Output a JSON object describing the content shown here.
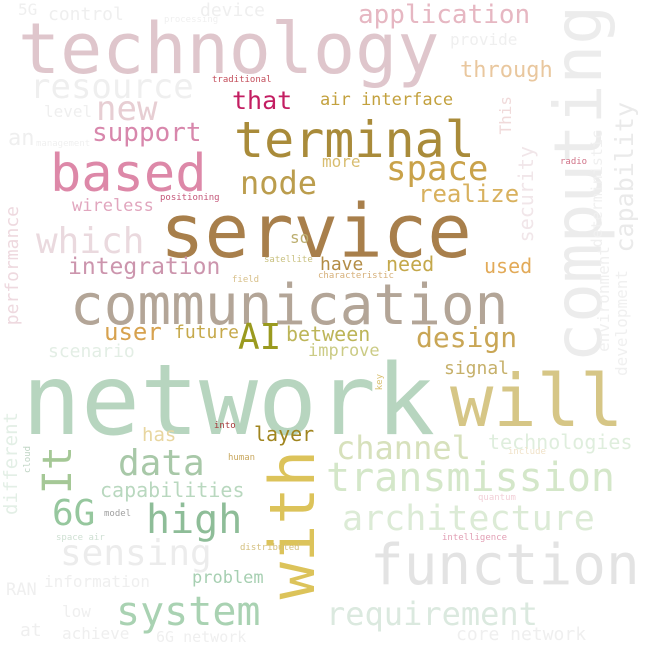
{
  "words": [
    {
      "text": "network",
      "color": "#b7d5bf"
    },
    {
      "text": "service",
      "color": "#a87f4b"
    },
    {
      "text": "technology",
      "color": "#dfc6cc"
    },
    {
      "text": "communication",
      "color": "#b3a597"
    },
    {
      "text": "computing",
      "color": "#ececec"
    },
    {
      "text": "will",
      "color": "#d6c686"
    },
    {
      "text": "with",
      "color": "#dcc35a"
    },
    {
      "text": "function",
      "color": "#e3e3e3"
    },
    {
      "text": "terminal",
      "color": "#a98b3a"
    },
    {
      "text": "based",
      "color": "#dd88a8"
    },
    {
      "text": "transmission",
      "color": "#d4e7c9"
    },
    {
      "text": "architecture",
      "color": "#dcebd6"
    },
    {
      "text": "system",
      "color": "#a9d2b2"
    },
    {
      "text": "requirement",
      "color": "#dbe9df"
    },
    {
      "text": "resource",
      "color": "#efefef"
    },
    {
      "text": "application",
      "color": "#e6b7c2"
    },
    {
      "text": "sensing",
      "color": "#ececec"
    },
    {
      "text": "high",
      "color": "#8ebd98"
    },
    {
      "text": "data",
      "color": "#a8c8a8"
    },
    {
      "text": "channel",
      "color": "#d7e1bc"
    },
    {
      "text": "which",
      "color": "#ead9de"
    },
    {
      "text": "space",
      "color": "#c9a24a"
    },
    {
      "text": "node",
      "color": "#bb9d4d"
    },
    {
      "text": "new",
      "color": "#e7ced3"
    },
    {
      "text": "It",
      "color": "#a5c896"
    },
    {
      "text": "6G",
      "color": "#96c79e"
    },
    {
      "text": "AI",
      "color": "#9a9a1f"
    },
    {
      "text": "design",
      "color": "#c9a655"
    },
    {
      "text": "support",
      "color": "#d887ac"
    },
    {
      "text": "integration",
      "color": "#cc95ad"
    },
    {
      "text": "capability",
      "color": "#eaeaea"
    },
    {
      "text": "technologies",
      "color": "#dfeedd"
    },
    {
      "text": "capabilities",
      "color": "#b9d8bf"
    },
    {
      "text": "user",
      "color": "#d7a24f"
    },
    {
      "text": "that",
      "color": "#c31e62"
    },
    {
      "text": "through",
      "color": "#e9c79e"
    },
    {
      "text": "realize",
      "color": "#d8b15e"
    },
    {
      "text": "security",
      "color": "#f1e6e9"
    },
    {
      "text": "need",
      "color": "#c4a84b"
    },
    {
      "text": "used",
      "color": "#e2aa58"
    },
    {
      "text": "layer",
      "color": "#a0851f"
    },
    {
      "text": "future",
      "color": "#c6a94b"
    },
    {
      "text": "between",
      "color": "#bdb559"
    },
    {
      "text": "improve",
      "color": "#cbcb85"
    },
    {
      "text": "scenario",
      "color": "#e3eee5"
    },
    {
      "text": "signal",
      "color": "#c6b06a"
    },
    {
      "text": "has",
      "color": "#e8d6a0"
    },
    {
      "text": "problem",
      "color": "#a6cfb1"
    },
    {
      "text": "have",
      "color": "#b38c45"
    },
    {
      "text": "more",
      "color": "#d8bd70"
    },
    {
      "text": "so",
      "color": "#bcae6f"
    },
    {
      "text": "air interface",
      "color": "#c3a13e"
    },
    {
      "text": "wireless",
      "color": "#e1a6be"
    },
    {
      "text": "performance",
      "color": "#eed9df"
    },
    {
      "text": "different",
      "color": "#e3efe6"
    },
    {
      "text": "environment",
      "color": "#f0f0f0"
    },
    {
      "text": "development",
      "color": "#f0f0f0"
    },
    {
      "text": "deterministic",
      "color": "#f0f0f0"
    },
    {
      "text": "This",
      "color": "#f0dada"
    },
    {
      "text": "provide",
      "color": "#efefef"
    },
    {
      "text": "level",
      "color": "#efefef"
    },
    {
      "text": "an",
      "color": "#efefef"
    },
    {
      "text": "5G",
      "color": "#efefef"
    },
    {
      "text": "control",
      "color": "#efefef"
    },
    {
      "text": "device",
      "color": "#efefef"
    },
    {
      "text": "information",
      "color": "#efefef"
    },
    {
      "text": "RAN",
      "color": "#efefef"
    },
    {
      "text": "low",
      "color": "#efefef"
    },
    {
      "text": "at",
      "color": "#efefef"
    },
    {
      "text": "achieve",
      "color": "#efefef"
    },
    {
      "text": "6G network",
      "color": "#efefef"
    },
    {
      "text": "core network",
      "color": "#efefef"
    },
    {
      "text": "traditional",
      "color": "#c44f5c"
    },
    {
      "text": "positioning",
      "color": "#c4577a"
    },
    {
      "text": "satellite",
      "color": "#c9c180"
    },
    {
      "text": "characteristic",
      "color": "#d6b07a"
    },
    {
      "text": "field",
      "color": "#d8c08a"
    },
    {
      "text": "radio",
      "color": "#d1758a"
    },
    {
      "text": "into",
      "color": "#a53b3b"
    },
    {
      "text": "human",
      "color": "#c9a85f"
    },
    {
      "text": "cloud",
      "color": "#bfd4c4"
    },
    {
      "text": "model",
      "color": "#a0a0a0"
    },
    {
      "text": "space air",
      "color": "#cfe0d3"
    },
    {
      "text": "distributed",
      "color": "#d4c080"
    },
    {
      "text": "intelligence",
      "color": "#e2a0b5"
    },
    {
      "text": "quantum",
      "color": "#f2d0d8"
    },
    {
      "text": "include",
      "color": "#f0e2c8"
    },
    {
      "text": "key",
      "color": "#d9c070"
    },
    {
      "text": "processing",
      "color": "#f0f0f0"
    },
    {
      "text": "management",
      "color": "#f0f0f0"
    }
  ]
}
